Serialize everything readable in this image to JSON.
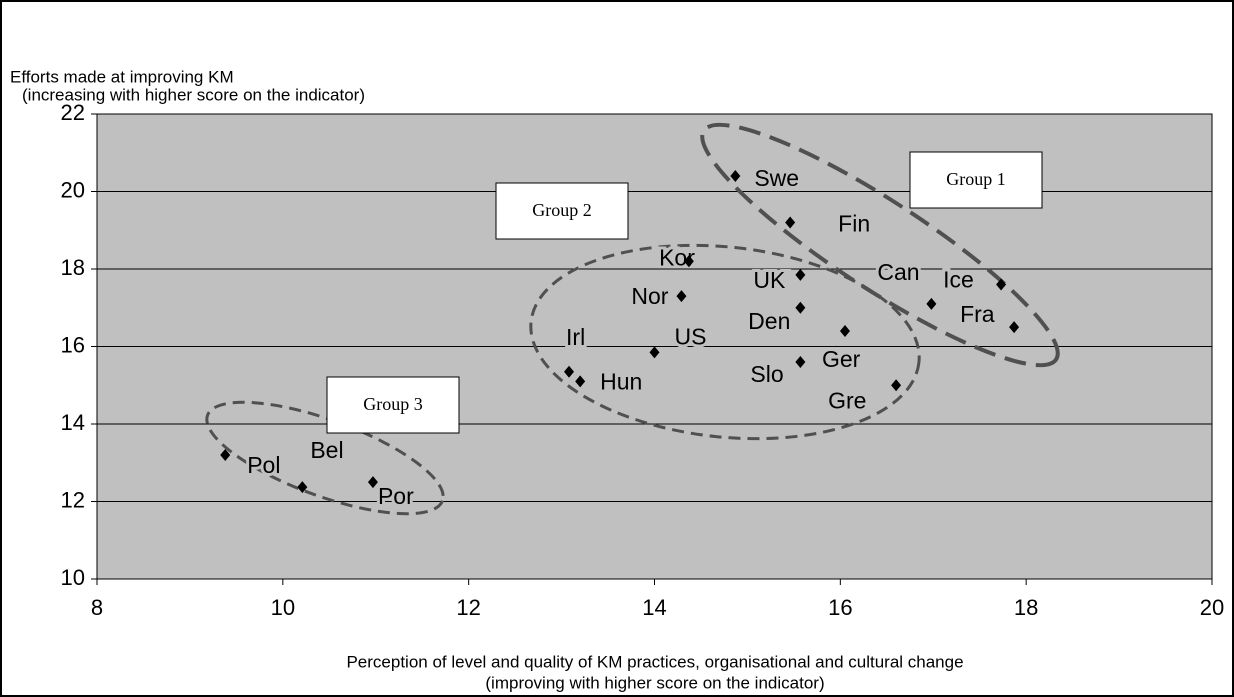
{
  "chart_data": {
    "type": "scatter",
    "y_label_lines": [
      "Efforts made at improving KM",
      "(increasing with higher score on the indicator)"
    ],
    "x_label_lines": [
      "Perception of level and quality of KM practices, organisational and cultural change",
      "(improving with higher score on the indicator)"
    ],
    "series": [
      {
        "color": "#000000",
        "labels": [
          "Swe",
          "Fin",
          "Kor",
          "UK",
          "Nor",
          "Den",
          "Ger",
          "Can",
          "Ice",
          "Fra",
          "US",
          "Irl",
          "Hun",
          "Slo",
          "Gre",
          "Pol",
          "Bel",
          "Por"
        ],
        "x": [
          14.87,
          15.46,
          14.37,
          15.57,
          14.29,
          15.57,
          16.05,
          16.98,
          17.73,
          17.87,
          14.0,
          13.08,
          13.2,
          15.57,
          16.6,
          9.38,
          10.21,
          10.97
        ],
        "values": [
          20.4,
          19.2,
          18.2,
          17.85,
          17.3,
          17.0,
          16.4,
          17.1,
          17.6,
          16.5,
          15.85,
          15.35,
          15.1,
          15.6,
          15.0,
          13.2,
          12.37,
          12.5
        ]
      }
    ],
    "annotations": [
      "Group 1",
      "Group 2",
      "Group 3"
    ],
    "xlim": [
      8,
      20
    ],
    "xticks": [
      8,
      10,
      12,
      14,
      16,
      18,
      20
    ],
    "ylim": [
      10,
      22
    ],
    "yticks": [
      10,
      12,
      14,
      16,
      18,
      20,
      22
    ],
    "grid": true,
    "background": "#c0c0c0"
  }
}
